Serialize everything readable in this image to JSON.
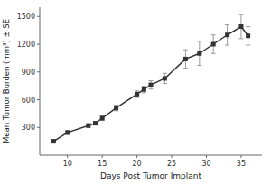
{
  "chart_data": {
    "type": "line",
    "x": [
      8,
      10,
      13,
      14,
      15,
      17,
      20,
      21,
      22,
      24,
      27,
      29,
      31,
      33,
      35,
      36
    ],
    "values": [
      150,
      245,
      320,
      345,
      400,
      510,
      660,
      710,
      760,
      830,
      1040,
      1100,
      1200,
      1300,
      1390,
      1290
    ],
    "yerr_lo": [
      15,
      20,
      20,
      15,
      25,
      30,
      35,
      35,
      45,
      55,
      100,
      130,
      100,
      110,
      130,
      100
    ],
    "yerr_hi": [
      15,
      20,
      20,
      15,
      25,
      30,
      35,
      35,
      45,
      55,
      100,
      130,
      100,
      110,
      130,
      100
    ],
    "xlabel": "Days Post Tumor Implant",
    "ylabel": "Mean Tumor Burden (mm³) ± SE",
    "xlim": [
      6,
      38
    ],
    "ylim": [
      0,
      1600
    ],
    "xticks": [
      10,
      15,
      20,
      25,
      30,
      35
    ],
    "yticks": [
      300,
      600,
      900,
      1200,
      1500
    ],
    "color": "#333333",
    "marker": "square",
    "grid": false
  }
}
